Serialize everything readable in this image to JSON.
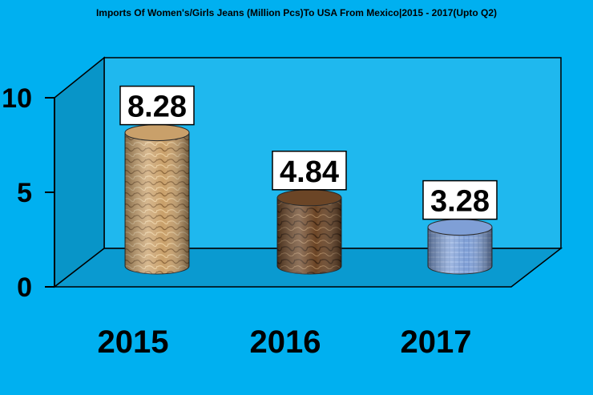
{
  "chart_data": {
    "type": "bar",
    "title": "Imports Of Women's/Girls Jeans (Million Pcs)To USA From Mexico|2015 - 2017(Upto Q2)",
    "categories": [
      "2015",
      "2016",
      "2017"
    ],
    "values": [
      8.28,
      4.84,
      3.28
    ],
    "data_labels": [
      "8.28",
      "4.84",
      "3.28"
    ],
    "y_ticks": [
      {
        "value": 0,
        "label": "0"
      },
      {
        "value": 5,
        "label": "5"
      },
      {
        "value": 10,
        "label": "10"
      }
    ],
    "ylim": [
      0,
      10
    ],
    "grid": false,
    "legend": "none",
    "style": "3d-cylinder",
    "colors": {
      "background": "#00b0f0",
      "wall": "#1fb8ee",
      "floor": "#0a9ad0",
      "side_wall": "#0895c8",
      "bar_2015": "#c9a06a",
      "bar_2016": "#6b4526",
      "bar_2017": "#7f9fd6"
    }
  }
}
